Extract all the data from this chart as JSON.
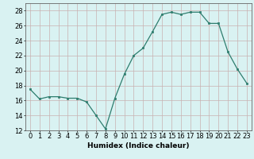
{
  "x": [
    0,
    1,
    2,
    3,
    4,
    5,
    6,
    7,
    8,
    9,
    10,
    11,
    12,
    13,
    14,
    15,
    16,
    17,
    18,
    19,
    20,
    21,
    22,
    23
  ],
  "y": [
    17.5,
    16.2,
    16.5,
    16.5,
    16.3,
    16.3,
    15.8,
    14.0,
    12.2,
    16.3,
    19.5,
    22.0,
    23.0,
    25.2,
    27.5,
    27.8,
    27.5,
    27.8,
    27.8,
    26.3,
    26.3,
    22.5,
    20.2,
    18.3
  ],
  "line_color": "#2e7d6e",
  "marker": "s",
  "marker_size": 2.0,
  "bg_color": "#d9f2f2",
  "grid_color": "#c8b0b0",
  "xlabel": "Humidex (Indice chaleur)",
  "xlim": [
    -0.5,
    23.5
  ],
  "ylim": [
    12,
    29
  ],
  "yticks": [
    12,
    14,
    16,
    18,
    20,
    22,
    24,
    26,
    28
  ],
  "xtick_labels": [
    "0",
    "1",
    "2",
    "3",
    "4",
    "5",
    "6",
    "7",
    "8",
    "9",
    "10",
    "11",
    "12",
    "13",
    "14",
    "15",
    "16",
    "17",
    "18",
    "19",
    "20",
    "21",
    "22",
    "23"
  ],
  "xlabel_fontsize": 6.5,
  "tick_fontsize": 6.0
}
